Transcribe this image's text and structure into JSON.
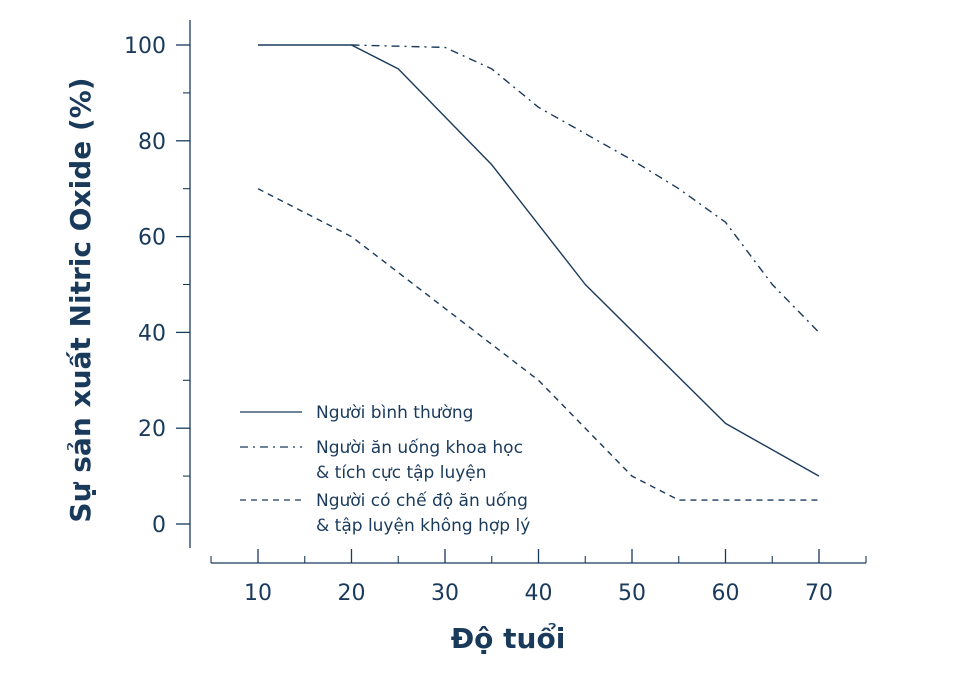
{
  "colors": {
    "ink": "#1a3a5c",
    "background": "#ffffff"
  },
  "chart_data": {
    "type": "line",
    "title": "",
    "xlabel": "Độ tuổi",
    "ylabel": "Sự sản xuất Nitric Oxide (%)",
    "xlim": [
      5,
      75
    ],
    "ylim": [
      -5,
      105
    ],
    "xticks": [
      10,
      20,
      30,
      40,
      50,
      60,
      70
    ],
    "xticks_minor": [
      15,
      25,
      35,
      45,
      55,
      65
    ],
    "yticks": [
      0,
      20,
      40,
      60,
      80,
      100
    ],
    "yticks_minor": [
      10,
      30,
      50,
      70,
      90
    ],
    "grid": false,
    "legend_position": "lower-left",
    "series": [
      {
        "name": "Người bình thường",
        "line_style": "solid",
        "x": [
          10,
          20,
          25,
          35,
          45,
          60,
          70
        ],
        "y": [
          100,
          100,
          95,
          75,
          50,
          21,
          10
        ]
      },
      {
        "name": "Người ăn uống khoa học & tích cực tập luyện",
        "name_lines": [
          "Người ăn uống khoa học",
          "& tích cực tập luyện"
        ],
        "line_style": "dashdot",
        "x": [
          20,
          30,
          35,
          40,
          50,
          55,
          60,
          65,
          70
        ],
        "y": [
          100,
          99.5,
          95,
          87,
          76,
          70,
          63,
          50,
          40
        ]
      },
      {
        "name": "Người có chế độ ăn uống & tập luyện không hợp lý",
        "name_lines": [
          "Người có chế độ ăn uống",
          "& tập luyện không hợp lý"
        ],
        "line_style": "dashed",
        "x": [
          10,
          20,
          30,
          40,
          50,
          55,
          70
        ],
        "y": [
          70,
          60,
          45,
          30,
          10,
          5,
          5
        ]
      }
    ]
  }
}
